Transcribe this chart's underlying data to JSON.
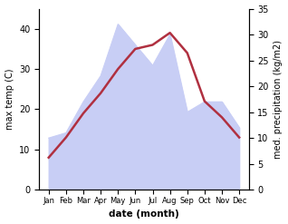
{
  "months": [
    "Jan",
    "Feb",
    "Mar",
    "Apr",
    "May",
    "Jun",
    "Jul",
    "Aug",
    "Sep",
    "Oct",
    "Nov",
    "Dec"
  ],
  "month_indices": [
    0,
    1,
    2,
    3,
    4,
    5,
    6,
    7,
    8,
    9,
    10,
    11
  ],
  "temp": [
    8,
    13,
    19,
    24,
    30,
    35,
    36,
    39,
    34,
    22,
    18,
    13
  ],
  "precip": [
    10,
    11,
    17,
    22,
    32,
    28,
    24,
    30,
    15,
    17,
    17,
    12
  ],
  "temp_color": "#b03040",
  "precip_fill_color": "#c8cef5",
  "left_ylabel": "max temp (C)",
  "right_ylabel": "med. precipitation (kg/m2)",
  "xlabel": "date (month)",
  "left_ylim": [
    0,
    45
  ],
  "right_ylim": [
    0,
    35
  ],
  "left_yticks": [
    0,
    10,
    20,
    30,
    40
  ],
  "right_yticks": [
    0,
    5,
    10,
    15,
    20,
    25,
    30,
    35
  ],
  "background_color": "#ffffff"
}
